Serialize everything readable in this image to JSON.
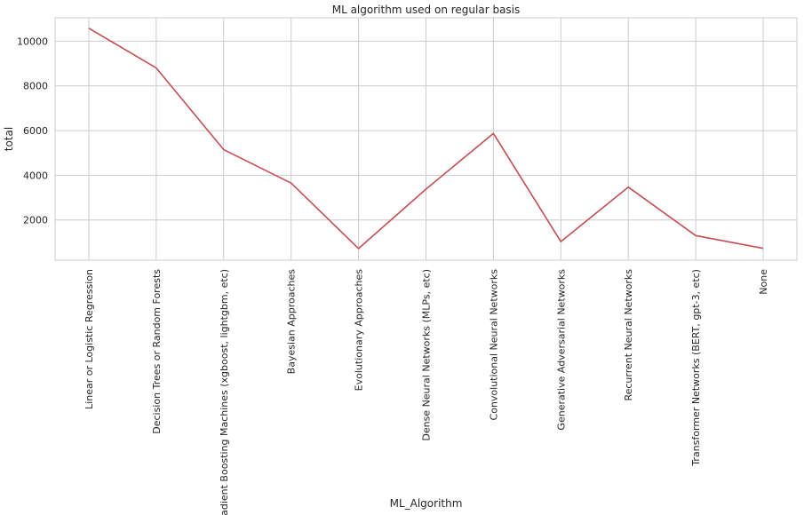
{
  "chart_data": {
    "type": "line",
    "title": "ML algorithm used on regular basis",
    "xlabel": "ML_Algorithm",
    "ylabel": "total",
    "categories": [
      "Linear or Logistic Regression",
      "Decision Trees or Random Forests",
      "Gradient Boosting Machines (xgboost, lightgbm, etc)",
      "Bayesian Approaches",
      "Evolutionary Approaches",
      "Dense Neural Networks (MLPs, etc)",
      "Convolutional Neural Networks",
      "Generative Adversarial Networks",
      "Recurrent Neural Networks",
      "Transformer Networks (BERT, gpt-3, etc)",
      "None"
    ],
    "series": [
      {
        "values": [
          10580,
          8800,
          5150,
          3650,
          720,
          3380,
          5870,
          1030,
          3470,
          1300,
          730
        ],
        "color": "#c44e52"
      }
    ],
    "yticks": [
      2000,
      4000,
      6000,
      8000,
      10000
    ],
    "ylim": [
      200,
      11050
    ],
    "grid": true
  }
}
